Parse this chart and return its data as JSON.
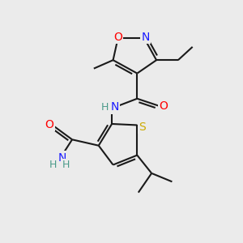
{
  "background_color": "#ebebeb",
  "atom_colors": {
    "C": "#1a1a1a",
    "H": "#4a9a8a",
    "N": "#1a1aff",
    "O": "#ff0000",
    "S": "#ccaa00"
  },
  "bond_color": "#1a1a1a",
  "bond_width": 1.5,
  "figsize": [
    3.0,
    3.0
  ],
  "dpi": 100,
  "xlim": [
    0,
    10
  ],
  "ylim": [
    0,
    10
  ]
}
